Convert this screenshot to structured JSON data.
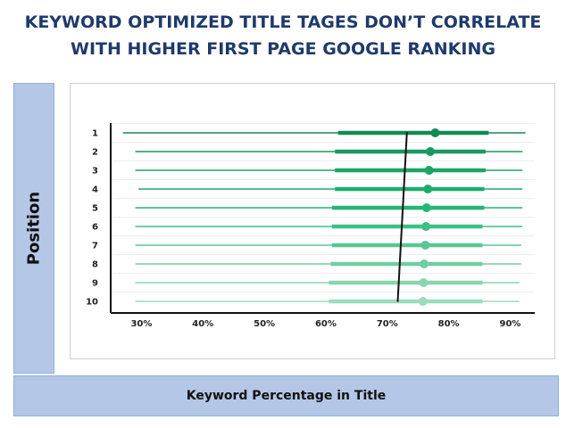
{
  "title_lines": [
    "KEYWORD OPTIMIZED TITLE TAGES DON’T CORRELATE",
    "WITH HIGHER FIRST PAGE GOOGLE RANKING"
  ],
  "chart_data": {
    "type": "scatter",
    "xlabel": "Keyword Percentage in Title",
    "ylabel": "Position",
    "xlim": [
      25,
      94
    ],
    "x_ticks": [
      "30%",
      "40%",
      "50%",
      "60%",
      "70%",
      "80%",
      "90%"
    ],
    "x_tick_values": [
      30,
      40,
      50,
      60,
      70,
      80,
      90
    ],
    "positions": [
      "1",
      "2",
      "3",
      "4",
      "5",
      "6",
      "7",
      "8",
      "9",
      "10"
    ],
    "points": [
      {
        "position": 1,
        "value": 77.8,
        "range_low": 27.0,
        "range_high": 92.5,
        "iqr_low": 62.0,
        "iqr_high": 86.5
      },
      {
        "position": 2,
        "value": 77.0,
        "range_low": 29.0,
        "range_high": 92.0,
        "iqr_low": 61.5,
        "iqr_high": 86.0
      },
      {
        "position": 3,
        "value": 76.8,
        "range_low": 29.0,
        "range_high": 92.0,
        "iqr_low": 61.5,
        "iqr_high": 86.0
      },
      {
        "position": 4,
        "value": 76.6,
        "range_low": 29.5,
        "range_high": 92.0,
        "iqr_low": 61.5,
        "iqr_high": 85.8
      },
      {
        "position": 5,
        "value": 76.4,
        "range_low": 29.0,
        "range_high": 92.0,
        "iqr_low": 61.0,
        "iqr_high": 85.8
      },
      {
        "position": 6,
        "value": 76.3,
        "range_low": 29.0,
        "range_high": 92.0,
        "iqr_low": 61.0,
        "iqr_high": 85.5
      },
      {
        "position": 7,
        "value": 76.2,
        "range_low": 29.0,
        "range_high": 91.8,
        "iqr_low": 61.0,
        "iqr_high": 85.5
      },
      {
        "position": 8,
        "value": 76.0,
        "range_low": 29.0,
        "range_high": 91.8,
        "iqr_low": 60.8,
        "iqr_high": 85.5
      },
      {
        "position": 9,
        "value": 75.9,
        "range_low": 29.0,
        "range_high": 91.5,
        "iqr_low": 60.5,
        "iqr_high": 85.5
      },
      {
        "position": 10,
        "value": 75.8,
        "range_low": 29.0,
        "range_high": 91.5,
        "iqr_low": 60.5,
        "iqr_high": 85.5
      }
    ],
    "trend_line": {
      "from": {
        "position": 1,
        "value": 73.2
      },
      "to": {
        "position": 10,
        "value": 71.7
      }
    },
    "colors": [
      "#138a55",
      "#179a5e",
      "#1aa566",
      "#1bad6c",
      "#22b873",
      "#3cc085",
      "#57c793",
      "#70cfa1",
      "#86d6af",
      "#9cdcbc"
    ],
    "grid": true
  }
}
